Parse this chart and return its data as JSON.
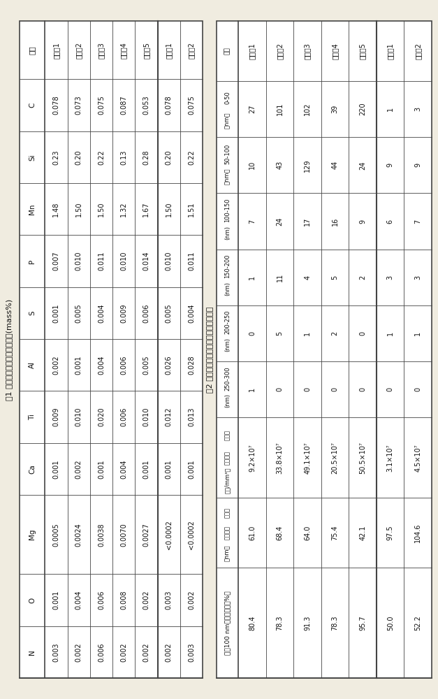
{
  "table1_title": "表1 实施例和对比例的化学成分(mass%)",
  "table1_headers": [
    "成分",
    "C",
    "Si",
    "Mn",
    "P",
    "S",
    "Al",
    "Ti",
    "Ca",
    "Mg",
    "O",
    "N"
  ],
  "table1_rows": [
    [
      "实施例1",
      "0.078",
      "0.23",
      "1.48",
      "0.007",
      "0.001",
      "0.002",
      "0.009",
      "0.001",
      "0.0005",
      "0.001",
      "0.003"
    ],
    [
      "实施例2",
      "0.073",
      "0.20",
      "1.50",
      "0.010",
      "0.005",
      "0.001",
      "0.010",
      "0.002",
      "0.0024",
      "0.004",
      "0.002"
    ],
    [
      "实施例3",
      "0.075",
      "0.22",
      "1.50",
      "0.011",
      "0.004",
      "0.004",
      "0.020",
      "0.001",
      "0.0038",
      "0.006",
      "0.006"
    ],
    [
      "实施例4",
      "0.087",
      "0.13",
      "1.32",
      "0.010",
      "0.009",
      "0.006",
      "0.006",
      "0.004",
      "0.0070",
      "0.008",
      "0.002"
    ],
    [
      "实施例5",
      "0.053",
      "0.28",
      "1.67",
      "0.014",
      "0.006",
      "0.005",
      "0.010",
      "0.001",
      "0.0027",
      "0.002",
      "0.002"
    ],
    [
      "对比例1",
      "0.078",
      "0.20",
      "1.50",
      "0.010",
      "0.005",
      "0.026",
      "0.012",
      "0.001",
      "<0.0002",
      "0.003",
      "0.002"
    ],
    [
      "对比例2",
      "0.075",
      "0.22",
      "1.51",
      "0.011",
      "0.004",
      "0.028",
      "0.013",
      "0.001",
      "<0.0002",
      "0.002",
      "0.003"
    ]
  ],
  "table2_title": "表2 实施例和对比例中纳米析出物的对比",
  "table2_headers_line1": [
    "项目",
    "0-50",
    "50-100",
    "100-150",
    "150-200",
    "200-250",
    "250-300",
    "析出物",
    "析出物",
    "小于100 nm析出物比例（%）"
  ],
  "table2_headers_line2": [
    "",
    "（nm）",
    "（nm）",
    "(nm)",
    "(nm)",
    "(nm)",
    "(nm)",
    "体积密度",
    "平均粒径",
    ""
  ],
  "table2_headers_line3": [
    "",
    "",
    "",
    "",
    "",
    "",
    "",
    "（个/mm³）",
    "（nm）",
    ""
  ],
  "table2_rows": [
    [
      "实施例1",
      "27",
      "10",
      "7",
      "1",
      "0",
      "1",
      "9.2×10⁷",
      "61.0",
      "80.4"
    ],
    [
      "实施例2",
      "101",
      "43",
      "24",
      "11",
      "5",
      "0",
      "33.8×10⁷",
      "68.4",
      "78.3"
    ],
    [
      "实施例3",
      "102",
      "129",
      "17",
      "4",
      "1",
      "0",
      "49.1×10⁷",
      "64.0",
      "91.3"
    ],
    [
      "实施例4",
      "39",
      "44",
      "16",
      "5",
      "2",
      "0",
      "20.5×10⁷",
      "75.4",
      "78.3"
    ],
    [
      "实施例5",
      "220",
      "24",
      "9",
      "2",
      "0",
      "0",
      "50.5×10⁷",
      "42.1",
      "95.7"
    ],
    [
      "对比例1",
      "1",
      "9",
      "6",
      "3",
      "1",
      "0",
      "3.1×10⁷",
      "97.5",
      "50.0"
    ],
    [
      "对比例2",
      "3",
      "9",
      "7",
      "3",
      "1",
      "0",
      "4.5×10⁷",
      "104.6",
      "52.2"
    ]
  ],
  "separator_after_row": 4,
  "bg_color": "#f0ece0",
  "line_color": "#444444",
  "text_color": "#111111"
}
